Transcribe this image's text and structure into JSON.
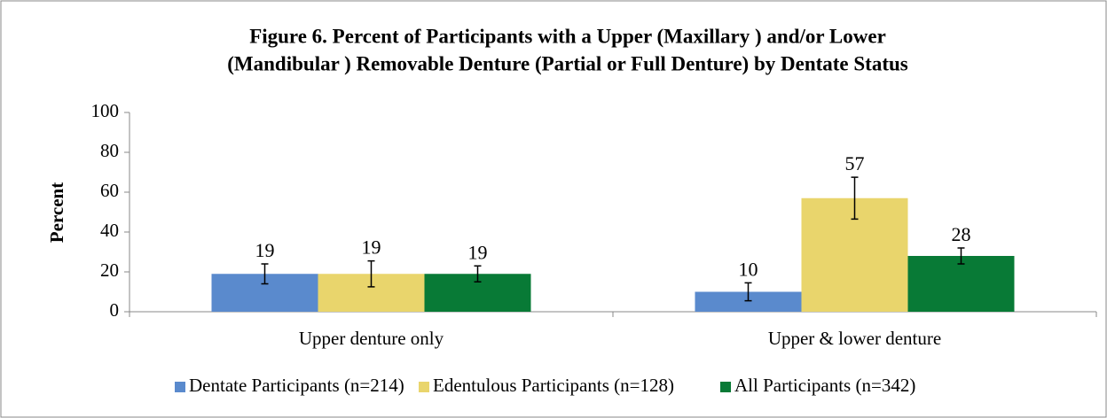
{
  "chart_data": {
    "type": "bar",
    "title": [
      "Figure 6. Percent of Participants with a Upper (Maxillary ) and/or Lower",
      "(Mandibular ) Removable Denture (Partial or Full Denture) by Dentate Status"
    ],
    "ylabel": "Percent",
    "categories": [
      "Upper denture only",
      "Upper & lower denture"
    ],
    "series": [
      {
        "name": "Dentate Participants (n=214)",
        "color": "#5a8acd",
        "values": [
          19,
          10
        ],
        "errors": [
          5,
          4.5
        ]
      },
      {
        "name": "Edentulous Participants (n=128)",
        "color": "#e9d56c",
        "values": [
          19,
          57
        ],
        "errors": [
          6.5,
          10.5
        ]
      },
      {
        "name": "All Participants (n=342)",
        "color": "#087a36",
        "values": [
          19,
          28
        ],
        "errors": [
          4,
          4
        ]
      }
    ],
    "ylim": [
      0,
      100
    ],
    "yticks": [
      0,
      20,
      40,
      60,
      80,
      100
    ],
    "legend": "bottom"
  }
}
